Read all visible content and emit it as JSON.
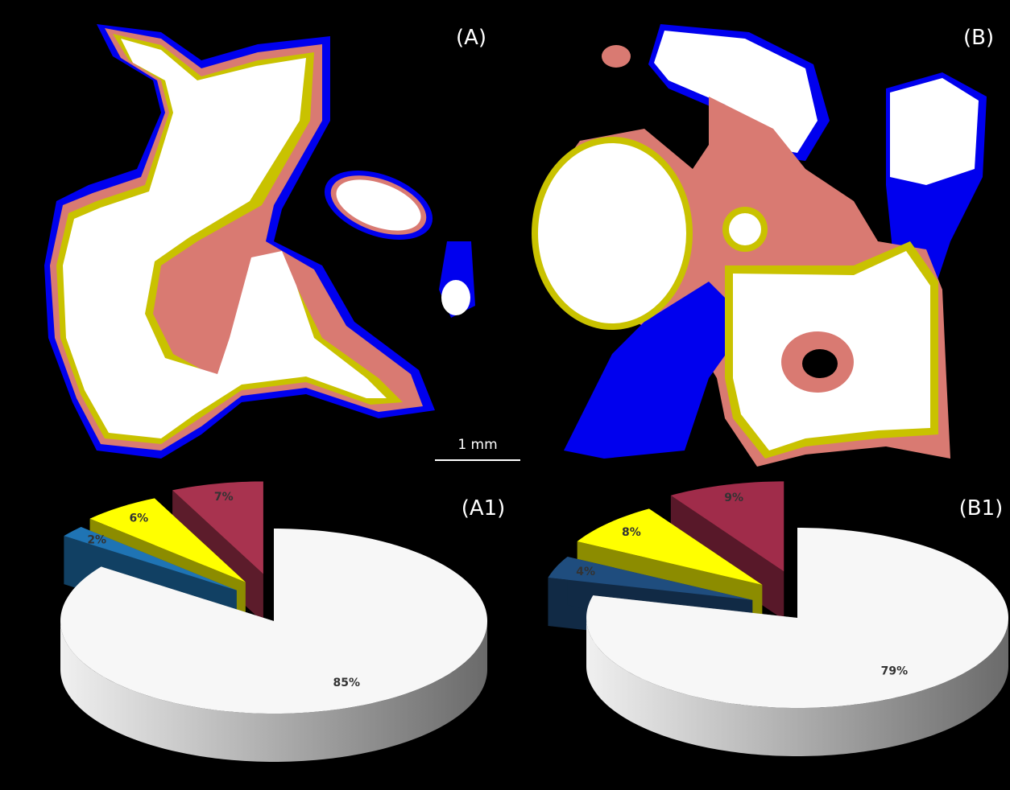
{
  "panels": {
    "a": "(A)",
    "b": "(B)"
  },
  "scale_bar": "1 mm",
  "chart_data": [
    {
      "type": "pie",
      "title": "(A1)",
      "values": [
        85,
        2,
        6,
        7
      ],
      "value_labels": [
        "85%",
        "2%",
        "6%",
        "7%"
      ],
      "colors": [
        "#f7f7f7",
        "#1f74b4",
        "#ffff00",
        "#a8334f"
      ]
    },
    {
      "type": "pie",
      "title": "(B1)",
      "values": [
        79,
        4,
        8,
        9
      ],
      "value_labels": [
        "79%",
        "4%",
        "8%",
        "9%"
      ],
      "colors": [
        "#f7f7f7",
        "#1f4d7e",
        "#ffff00",
        "#a02c4a"
      ]
    }
  ]
}
